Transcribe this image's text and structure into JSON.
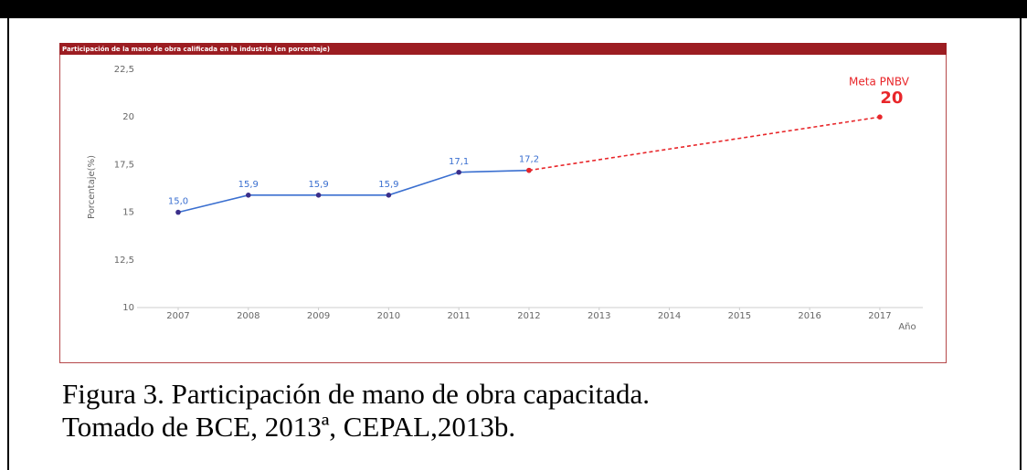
{
  "caption": [
    "Figura 3. Participación de mano de obra capacitada.",
    "Tomado de BCE, 2013ª, CEPAL,2013b."
  ],
  "chart_data": {
    "type": "line",
    "title": "Participación de la mano de obra calificada en la industria (en porcentaje)",
    "y_label": "Porcentaje(%)",
    "x_label": "Año",
    "annotation": "Meta PNBV",
    "xlim": [
      2006.5,
      2017.6
    ],
    "xticks": [
      2007,
      2008,
      2009,
      2010,
      2011,
      2012,
      2013,
      2014,
      2015,
      2016,
      2017
    ],
    "ylim": [
      10,
      22.5
    ],
    "yticks": [
      {
        "value": 10,
        "label": "10"
      },
      {
        "value": 12.5,
        "label": "12,5"
      },
      {
        "value": 15,
        "label": "15"
      },
      {
        "value": 17.5,
        "label": "17,5"
      },
      {
        "value": 20,
        "label": "20"
      },
      {
        "value": 22.5,
        "label": "22,5"
      }
    ],
    "series": [
      {
        "color": "#3a6fd0",
        "marker_color": "#3b2f8a",
        "dashed": false,
        "x": [
          2007,
          2008,
          2009,
          2010,
          2011,
          2012
        ],
        "values": [
          15.0,
          15.9,
          15.9,
          15.9,
          17.1,
          17.2
        ],
        "value_labels": [
          "15,0",
          "15,9",
          "15,9",
          "15,9",
          "17,1",
          "17,2"
        ]
      },
      {
        "color": "#e8262a",
        "marker_color": "#e8262a",
        "dashed": true,
        "x": [
          2012,
          2017
        ],
        "values": [
          17.2,
          20
        ]
      }
    ]
  }
}
